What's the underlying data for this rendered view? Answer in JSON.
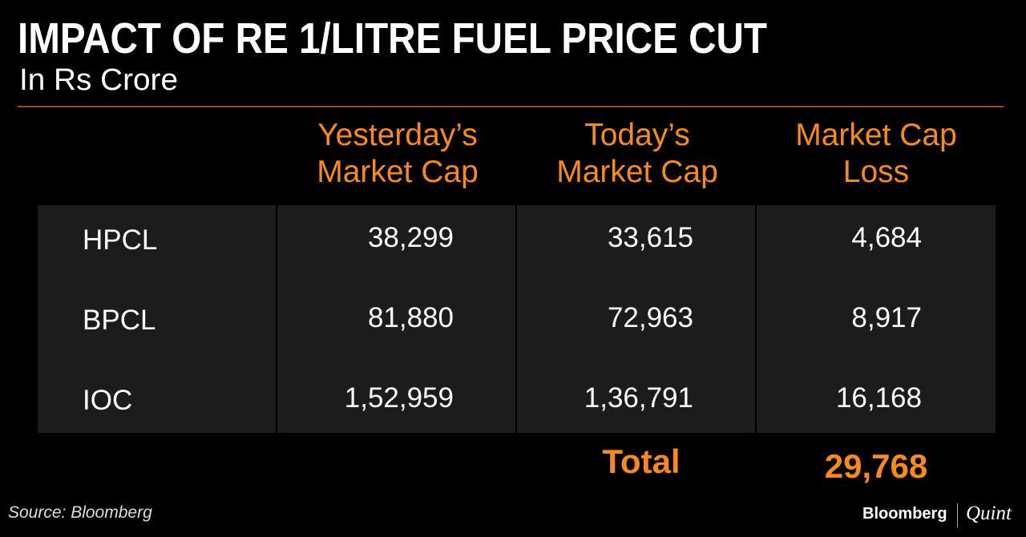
{
  "header": {
    "title": "IMPACT OF RE 1/LITRE FUEL PRICE CUT",
    "subtitle": "In Rs Crore"
  },
  "table": {
    "columns": [
      "Yesterday’s Market Cap",
      "Today’s Market Cap",
      "Market Cap Loss"
    ],
    "rows": [
      [
        "HPCL",
        "38,299",
        "33,615",
        "4,684"
      ],
      [
        "BPCL",
        "81,880",
        "72,963",
        "8,917"
      ],
      [
        "IOC",
        "1,52,959",
        "1,36,791",
        "16,168"
      ]
    ],
    "total": {
      "label": "Total",
      "value": "29,768"
    }
  },
  "footer": {
    "source": "Source: Bloomberg",
    "brand": "Bloomberg",
    "brand_partner": "Quint"
  }
}
